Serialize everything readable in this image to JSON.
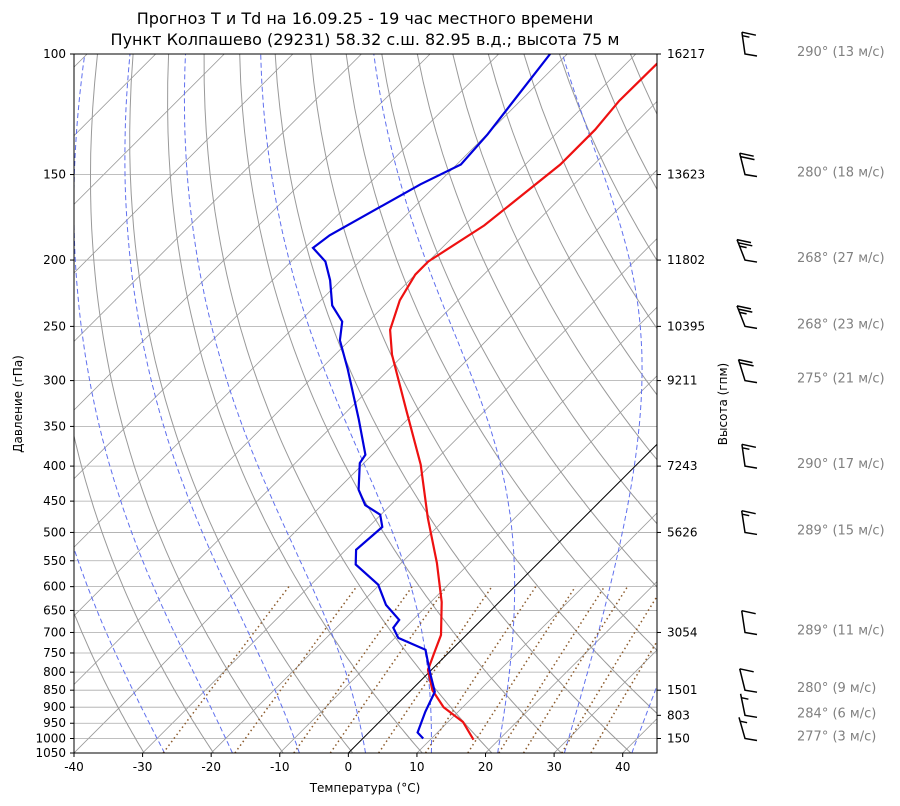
{
  "chart_data": {
    "type": "skewt",
    "title": "Прогноз T и Td на 16.09.25 - 19 час местного времени",
    "subtitle": "Пункт Колпашево (29231) 58.32 с.ш. 82.95 в.д.; высота 75 м",
    "xlabel": "Температура (°C)",
    "ylabel": "Давление (гПа)",
    "y2label": "Высота (гпм)",
    "xlim": [
      -40,
      45
    ],
    "ylim": [
      1050,
      100
    ],
    "log_y": true,
    "xticks": [
      -40,
      -30,
      -20,
      -10,
      0,
      10,
      20,
      30,
      40
    ],
    "yticks": [
      100,
      150,
      200,
      250,
      300,
      350,
      400,
      450,
      500,
      550,
      600,
      650,
      700,
      750,
      800,
      850,
      900,
      950,
      1000,
      1050
    ],
    "grid": true,
    "heights": {
      "pressure": [
        100,
        150,
        200,
        250,
        300,
        400,
        500,
        700,
        850,
        925,
        1000
      ],
      "values": [
        16217,
        13623,
        11802,
        10395,
        9211,
        7243,
        5626,
        3054,
        1501,
        803,
        150
      ]
    },
    "series": [
      {
        "color": "#ee1111",
        "pressure": [
          1004,
          946,
          900,
          850,
          794,
          752,
          706,
          632,
          554,
          476,
          398,
          331,
          275,
          253,
          229,
          210,
          201,
          178,
          145,
          129,
          117,
          103
        ],
        "values": [
          16.3,
          12.2,
          7.2,
          3.1,
          -0.5,
          -2.0,
          -3.7,
          -8.4,
          -14.8,
          -22.7,
          -31.5,
          -41.6,
          -51.7,
          -55.6,
          -58.5,
          -60,
          -60,
          -57.1,
          -54.9,
          -54.9,
          -55.6,
          -55.5
        ]
      },
      {
        "color": "#0000dd",
        "pressure": [
          1000,
          980,
          914,
          855,
          800,
          742,
          713,
          689,
          671,
          638,
          596,
          557,
          530,
          491,
          471,
          456,
          433,
          396,
          385,
          342,
          289,
          262,
          246,
          233,
          214,
          201,
          192,
          184,
          155,
          145,
          131,
          100
        ],
        "values": [
          8.8,
          7.1,
          5.2,
          3.7,
          0.1,
          -3.8,
          -9.5,
          -11.7,
          -12,
          -16.1,
          -20.2,
          -26.4,
          -28.5,
          -28,
          -30.1,
          -33.7,
          -36.9,
          -40.6,
          -41,
          -47.1,
          -56,
          -61.4,
          -63.8,
          -67.6,
          -71.6,
          -75,
          -78.8,
          -78.2,
          -72.4,
          -69.4,
          -69.9,
          -72.5
        ]
      }
    ],
    "wind": {
      "pressure": [
        100,
        150,
        200,
        250,
        300,
        400,
        500,
        700,
        850,
        925,
        1000
      ],
      "direction": [
        290,
        280,
        268,
        268,
        275,
        290,
        289,
        289,
        280,
        284,
        277
      ],
      "speed": [
        13,
        18,
        27,
        23,
        21,
        17,
        15,
        11,
        9,
        6,
        3
      ],
      "labels": [
        "290° (13 м/с)",
        "280° (18 м/с)",
        "268° (27 м/с)",
        "268° (23 м/с)",
        "275° (21 м/с)",
        "290° (17 м/с)",
        "289° (15 м/с)",
        "289° (11 м/с)",
        "280° (9 м/с)",
        "284° (6 м/с)",
        "277° (3 м/с)"
      ]
    }
  }
}
